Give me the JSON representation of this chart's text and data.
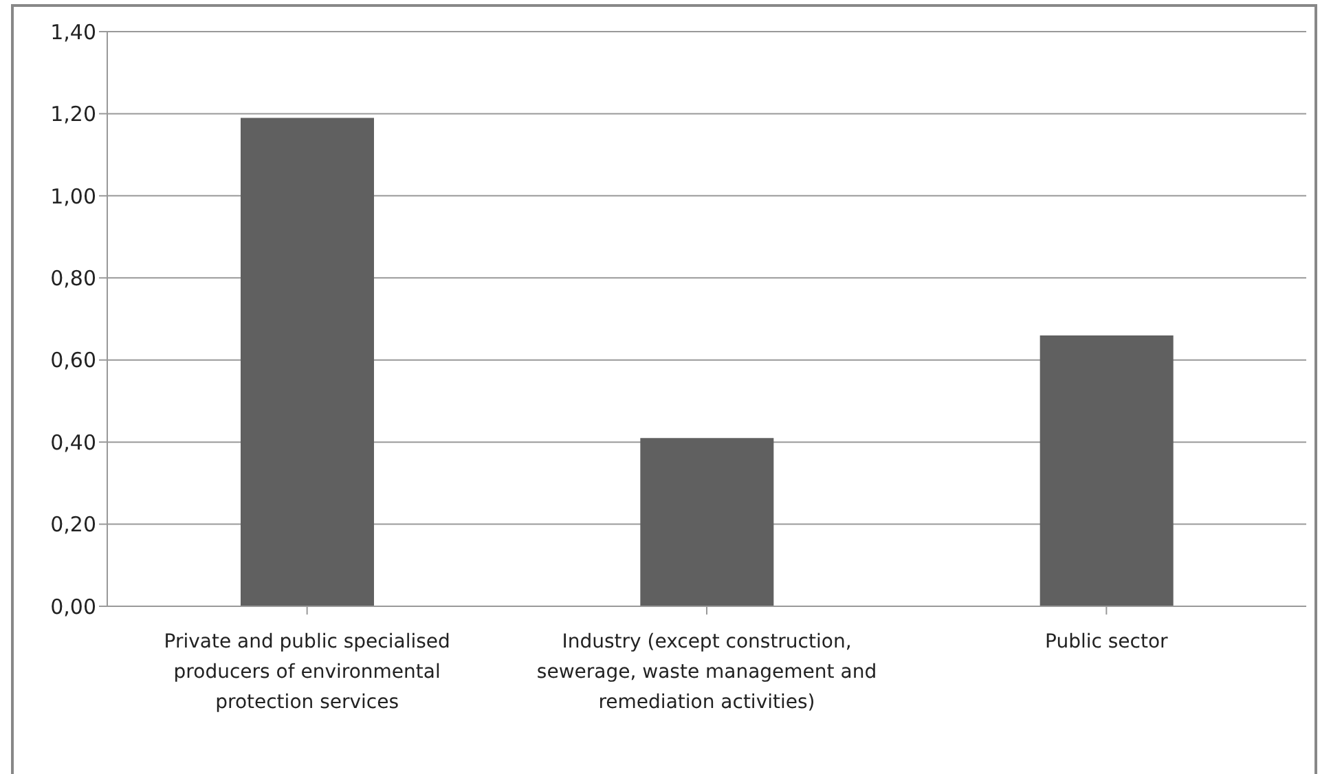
{
  "chart_data": {
    "type": "bar",
    "categories": [
      "Private and public specialised producers of environmental protection services",
      "Industry (except construction, sewerage, waste management and remediation activities)",
      "Public sector"
    ],
    "values": [
      1.19,
      0.41,
      0.66
    ],
    "color": "#606060",
    "ylim": [
      0,
      1.4
    ],
    "yticks": [
      {
        "value": 0,
        "label": "0,00"
      },
      {
        "value": 0.2,
        "label": "0,20"
      },
      {
        "value": 0.4,
        "label": "0,40"
      },
      {
        "value": 0.6,
        "label": "0,60"
      },
      {
        "value": 0.8,
        "label": "0,80"
      },
      {
        "value": 1.0,
        "label": "1,00"
      },
      {
        "value": 1.2,
        "label": "1,20"
      },
      {
        "value": 1.4,
        "label": "1,40"
      }
    ],
    "grid": "y"
  }
}
